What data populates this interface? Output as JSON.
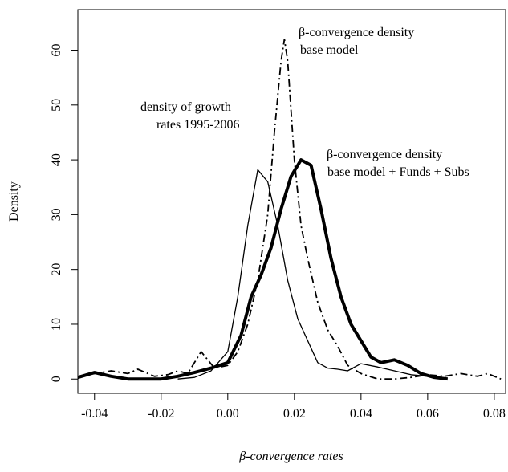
{
  "chart_data": {
    "type": "line",
    "xlabel": "β-convergence rates",
    "ylabel": "Density",
    "xlim": [
      -0.045,
      0.0834
    ],
    "ylim": [
      -2.6,
      67.4
    ],
    "xticks": [
      {
        "value": -0.04,
        "label": "-0.04"
      },
      {
        "value": -0.02,
        "label": "-0.02"
      },
      {
        "value": 0,
        "label": "0.00"
      },
      {
        "value": 0.02,
        "label": "0.02"
      },
      {
        "value": 0.04,
        "label": "0.04"
      },
      {
        "value": 0.06,
        "label": "0.06"
      },
      {
        "value": 0.08,
        "label": "0.08"
      }
    ],
    "yticks": [
      0,
      10,
      20,
      30,
      40,
      50,
      60
    ],
    "annotations": [
      "β-convergence density",
      "base model",
      "density of growth",
      "rates 1995-2006",
      "β-convergence density",
      "base model + Funds + Subs"
    ],
    "series": [
      {
        "name": "density of growth rates 1995-2006",
        "color": "#000000",
        "linewidth": 1.3,
        "dash": "solid",
        "x": [
          -0.015,
          -0.01,
          -0.005,
          0,
          0.003,
          0.006,
          0.009,
          0.012,
          0.015,
          0.018,
          0.021,
          0.024,
          0.027,
          0.03,
          0.033,
          0.036,
          0.04,
          0.045,
          0.05,
          0.055,
          0.06,
          0.065
        ],
        "values": [
          0,
          0.3,
          1.5,
          5,
          15,
          28,
          38.2,
          36,
          28,
          18,
          11,
          7,
          3,
          2,
          1.8,
          1.5,
          2.8,
          2.2,
          1.5,
          0.8,
          0.5,
          0
        ]
      },
      {
        "name": "β-convergence density base model",
        "color": "#000000",
        "linewidth": 1.8,
        "dash": "dashdot",
        "x": [
          -0.045,
          -0.04,
          -0.035,
          -0.03,
          -0.027,
          -0.022,
          -0.018,
          -0.015,
          -0.012,
          -0.008,
          -0.006,
          -0.004,
          0,
          0.003,
          0.006,
          0.009,
          0.012,
          0.014,
          0.016,
          0.017,
          0.018,
          0.02,
          0.022,
          0.024,
          0.027,
          0.03,
          0.033,
          0.036,
          0.04,
          0.045,
          0.05,
          0.055,
          0.06,
          0.065,
          0.07,
          0.075,
          0.078,
          0.082
        ],
        "values": [
          0.3,
          1,
          1.5,
          1,
          1.8,
          0.5,
          0.8,
          1.5,
          1,
          5,
          3.5,
          2,
          2.5,
          5,
          10,
          18,
          30,
          45,
          58,
          62,
          58,
          40,
          28,
          22,
          14,
          9,
          6,
          2.5,
          1,
          0,
          0,
          0.3,
          0.8,
          0.5,
          1,
          0.5,
          1,
          0
        ]
      },
      {
        "name": "β-convergence density base model + Funds + Subs",
        "color": "#000000",
        "linewidth": 4,
        "dash": "solid",
        "x": [
          -0.045,
          -0.04,
          -0.035,
          -0.03,
          -0.02,
          -0.015,
          -0.01,
          -0.005,
          0,
          0.004,
          0.007,
          0.01,
          0.013,
          0.016,
          0.019,
          0.022,
          0.025,
          0.028,
          0.031,
          0.034,
          0.037,
          0.04,
          0.043,
          0.046,
          0.05,
          0.054,
          0.058,
          0.062,
          0.066
        ],
        "values": [
          0.3,
          1.2,
          0.5,
          0,
          0,
          0.5,
          1.2,
          2,
          3,
          8,
          15,
          19,
          24,
          31,
          37,
          40,
          39,
          31,
          22,
          15,
          10,
          7,
          4,
          3,
          3.5,
          2.5,
          1,
          0.3,
          0
        ]
      }
    ]
  }
}
